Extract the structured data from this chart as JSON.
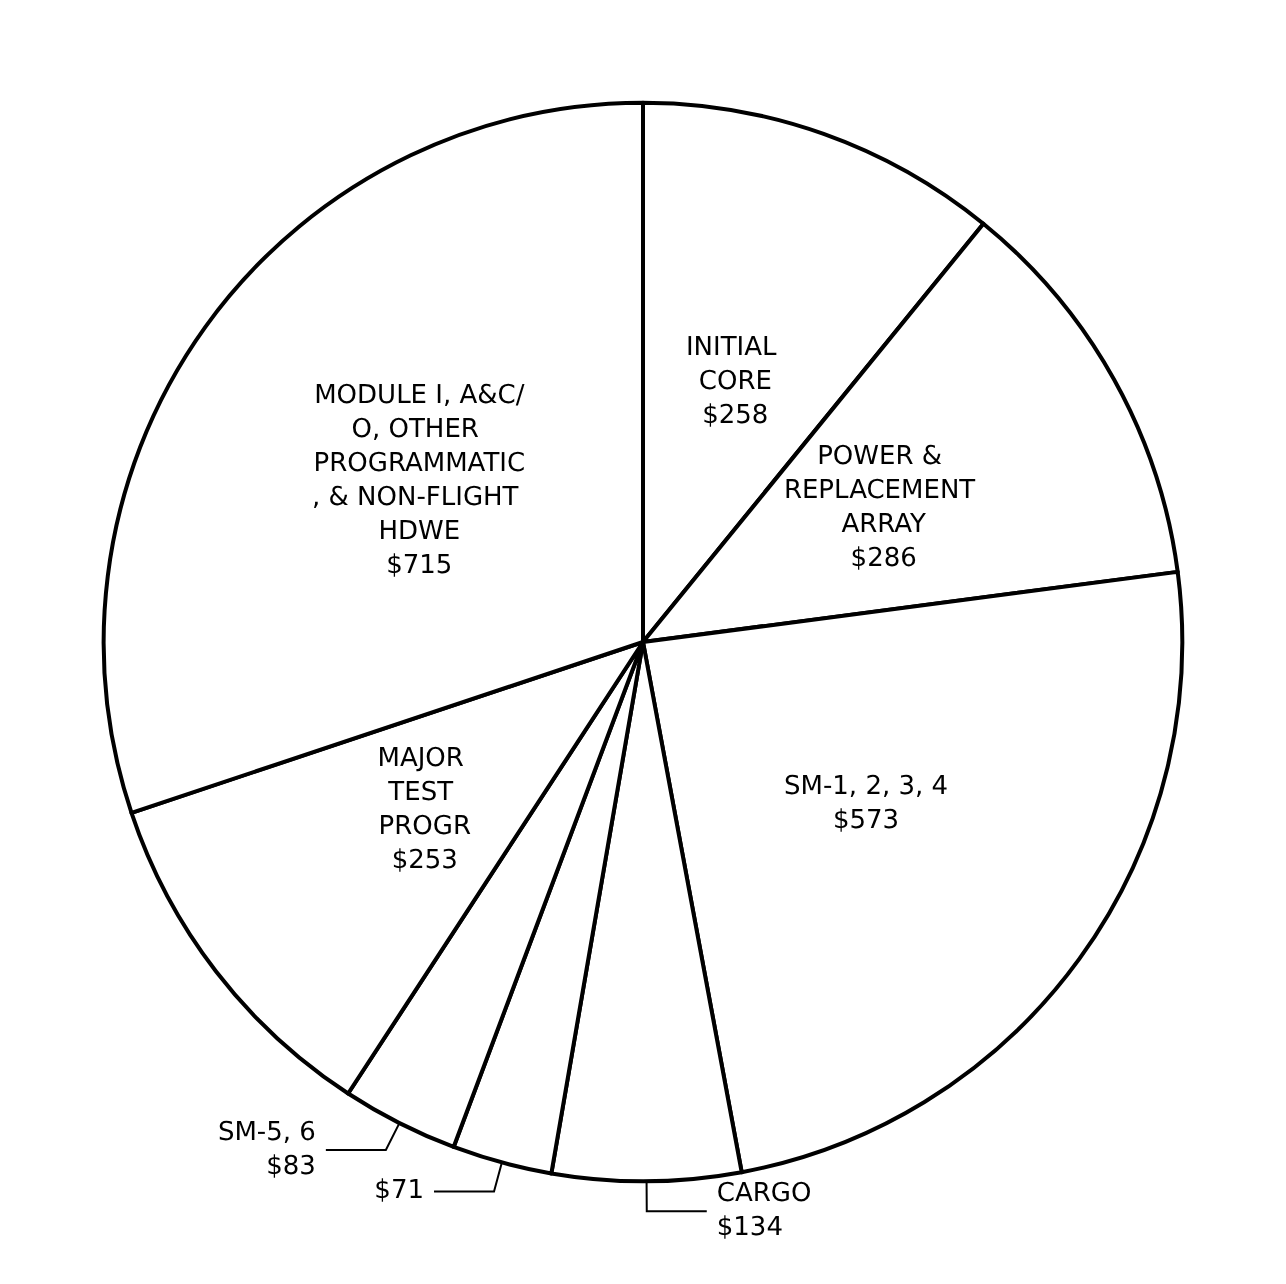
{
  "chart_data": {
    "type": "pie",
    "categories": [
      "INITIAL CORE",
      "POWER & REPLACEMENT ARRAY",
      "SM-1, 2, 3, 4",
      "CARGO",
      null,
      "SM-5, 6",
      "MAJOR TEST PROGR",
      "MODULE I, A&C/O, OTHER PROGRAMMATIC, & NON-FLIGHT HDWE"
    ],
    "values": [
      258,
      286,
      573,
      134,
      71,
      83,
      253,
      715
    ],
    "value_labels": [
      "$258",
      "$286",
      "$573",
      "$134",
      "$71",
      "$83",
      "$253",
      "$715"
    ],
    "colors": [
      "#ffffff",
      "#ffffff",
      "#ffffff",
      "#ffffff",
      "#ffffff",
      "#ffffff",
      "#ffffff",
      "#ffffff"
    ],
    "legend": false
  }
}
